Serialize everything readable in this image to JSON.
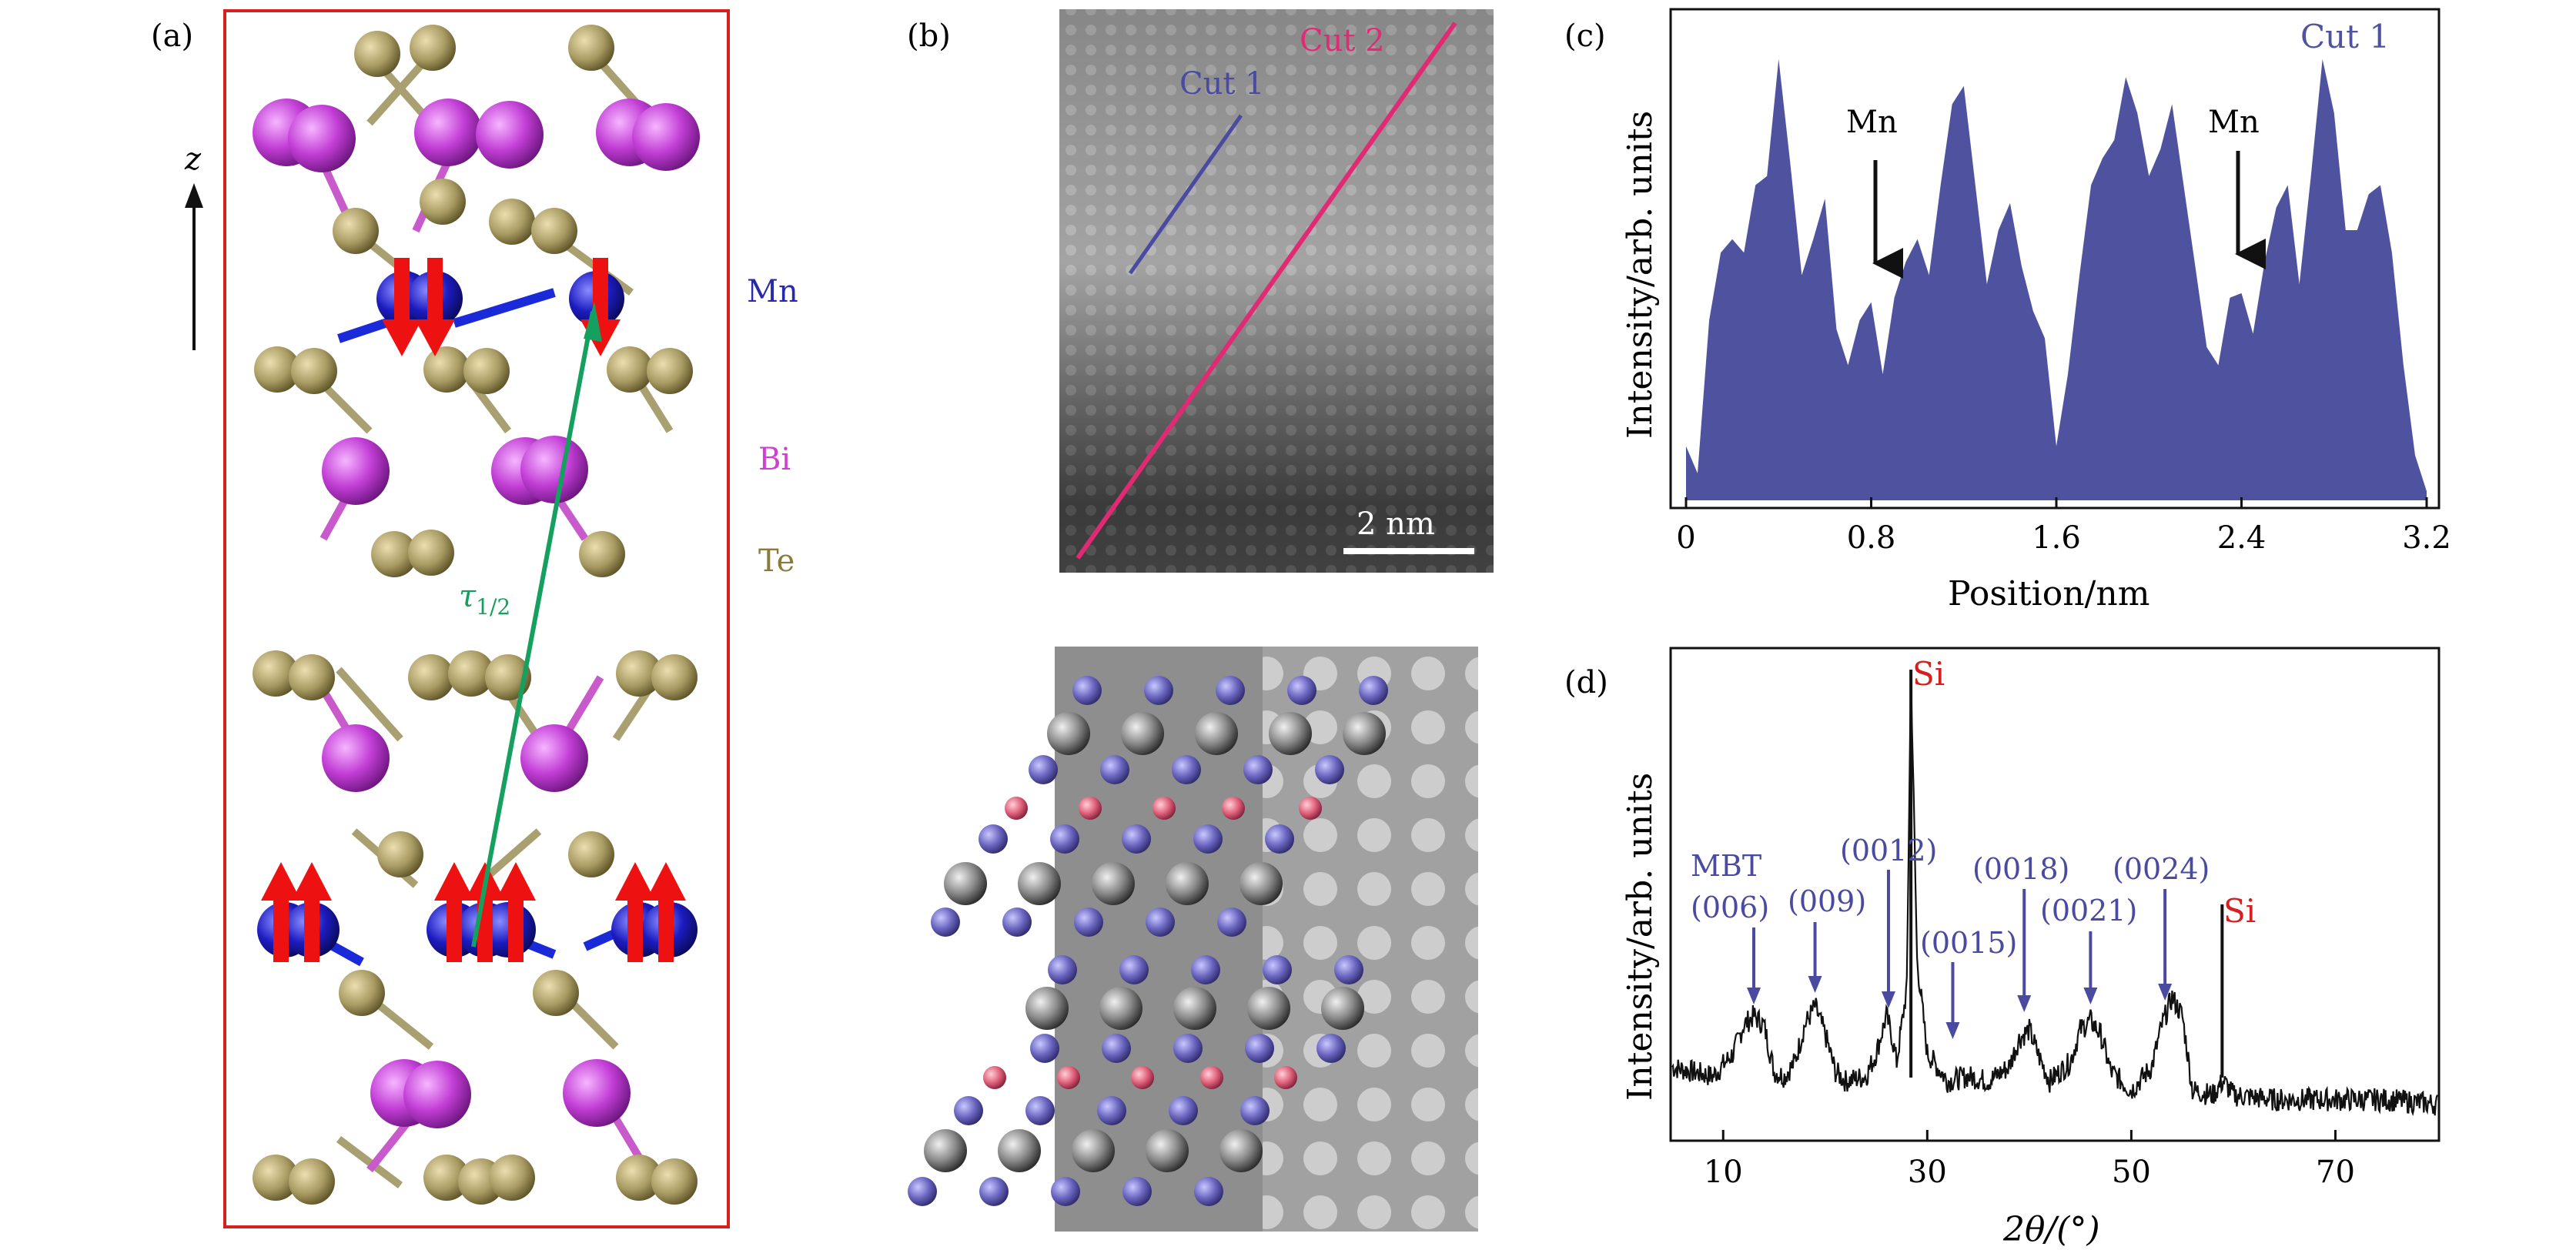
{
  "panels": {
    "a": {
      "label": "(a)",
      "axis_label": "z",
      "legend": [
        {
          "text": "Mn",
          "color": "#2a2aa8"
        },
        {
          "text": "Bi",
          "color": "#d040d0"
        },
        {
          "text": "Te",
          "color": "#8a7a3a"
        }
      ],
      "vector_label": "τ",
      "vector_subscript": "1/2",
      "colors": {
        "frame": "#d42020",
        "te": "#b3a774",
        "bi": "#cc44dd",
        "mn": "#1818aa",
        "spin": "#ee1111",
        "bond_mn": "#1a2ad8",
        "vector": "#16a060"
      }
    },
    "b": {
      "label": "(b)",
      "cut1": "Cut 1",
      "cut2": "Cut 2",
      "scalebar": "2 nm",
      "colors": {
        "cut1": "#4a4aa0",
        "cut2": "#e02a74"
      }
    },
    "c": {
      "label": "(c)",
      "legend": "Cut 1",
      "annotations": [
        "Mn",
        "Mn"
      ],
      "colors": {
        "fill": "#4f529e"
      }
    },
    "d": {
      "label": "(d)",
      "peak_labels": [
        "MBT",
        "(006)",
        "(009)",
        "(0012)",
        "(0015)",
        "(0018)",
        "(0021)",
        "(0024)"
      ],
      "si_labels": [
        "Si",
        "Si"
      ],
      "colors": {
        "peaks": "#4a4aa0",
        "si": "#d42020",
        "trace": "#111111"
      }
    }
  },
  "chart_data": [
    {
      "type": "area",
      "panel": "c",
      "xlabel": "Position/nm",
      "ylabel": "Intensity/arb. units",
      "series": [
        {
          "name": "Cut 1"
        }
      ],
      "xlim": [
        0,
        3.2
      ],
      "xticks": [
        "0",
        "0.8",
        "1.6",
        "2.4",
        "3.2"
      ],
      "ylim": [
        0,
        1
      ],
      "x": [
        0.0,
        0.05,
        0.1,
        0.15,
        0.2,
        0.25,
        0.3,
        0.35,
        0.4,
        0.45,
        0.5,
        0.55,
        0.6,
        0.65,
        0.7,
        0.75,
        0.8,
        0.85,
        0.9,
        0.95,
        1.0,
        1.05,
        1.1,
        1.15,
        1.2,
        1.25,
        1.3,
        1.35,
        1.4,
        1.45,
        1.5,
        1.55,
        1.6,
        1.65,
        1.7,
        1.75,
        1.8,
        1.85,
        1.9,
        1.95,
        2.0,
        2.05,
        2.1,
        2.15,
        2.2,
        2.25,
        2.3,
        2.35,
        2.4,
        2.45,
        2.5,
        2.55,
        2.6,
        2.65,
        2.7,
        2.75,
        2.8,
        2.85,
        2.9,
        2.95,
        3.0,
        3.05,
        3.1,
        3.15,
        3.2
      ],
      "y": [
        0.12,
        0.06,
        0.4,
        0.55,
        0.58,
        0.55,
        0.7,
        0.72,
        0.98,
        0.75,
        0.5,
        0.58,
        0.67,
        0.38,
        0.3,
        0.4,
        0.44,
        0.28,
        0.45,
        0.53,
        0.58,
        0.5,
        0.7,
        0.88,
        0.92,
        0.7,
        0.48,
        0.6,
        0.66,
        0.52,
        0.42,
        0.36,
        0.12,
        0.28,
        0.5,
        0.7,
        0.76,
        0.8,
        0.94,
        0.86,
        0.72,
        0.78,
        0.88,
        0.7,
        0.52,
        0.34,
        0.3,
        0.45,
        0.46,
        0.37,
        0.53,
        0.65,
        0.7,
        0.48,
        0.72,
        0.98,
        0.86,
        0.6,
        0.6,
        0.68,
        0.7,
        0.55,
        0.3,
        0.1,
        0.02
      ],
      "annotations": [
        {
          "text": "Mn",
          "x": 0.84
        },
        {
          "text": "Mn",
          "x": 2.42
        }
      ]
    },
    {
      "type": "line",
      "panel": "d",
      "xlabel": "2θ/(°)",
      "ylabel": "Intensity/arb. units",
      "xlim": [
        5,
        80
      ],
      "xticks": [
        "10",
        "30",
        "50",
        "70"
      ],
      "ylim": [
        0,
        1
      ],
      "x": [
        5,
        7,
        9,
        11,
        12,
        13,
        14,
        15,
        16,
        17,
        18,
        19,
        20,
        21,
        22,
        24,
        25,
        26,
        26.5,
        27,
        28,
        28.4,
        29,
        30,
        32,
        34,
        36,
        38,
        39,
        40,
        41,
        42,
        44,
        45,
        46,
        47,
        48,
        50,
        52,
        53,
        54,
        55,
        56,
        58,
        59,
        60,
        64,
        70,
        75,
        80
      ],
      "y": [
        0.13,
        0.12,
        0.11,
        0.16,
        0.22,
        0.24,
        0.22,
        0.12,
        0.11,
        0.14,
        0.22,
        0.26,
        0.2,
        0.12,
        0.1,
        0.11,
        0.16,
        0.24,
        0.2,
        0.14,
        0.3,
        0.98,
        0.36,
        0.16,
        0.1,
        0.11,
        0.1,
        0.13,
        0.19,
        0.21,
        0.15,
        0.1,
        0.14,
        0.21,
        0.23,
        0.2,
        0.12,
        0.08,
        0.13,
        0.22,
        0.28,
        0.24,
        0.08,
        0.07,
        0.1,
        0.07,
        0.06,
        0.06,
        0.06,
        0.05
      ],
      "peaks": [
        {
          "label": "(006)",
          "x": 13
        },
        {
          "label": "(009)",
          "x": 19
        },
        {
          "label": "(0012)",
          "x": 26.2
        },
        {
          "label": "(0015)",
          "x": 32.5
        },
        {
          "label": "(0018)",
          "x": 39.5
        },
        {
          "label": "(0021)",
          "x": 46
        },
        {
          "label": "(0024)",
          "x": 53.3
        }
      ],
      "si_peaks": [
        {
          "label": "Si",
          "x": 28.4
        },
        {
          "label": "Si",
          "x": 58.9
        }
      ]
    }
  ]
}
